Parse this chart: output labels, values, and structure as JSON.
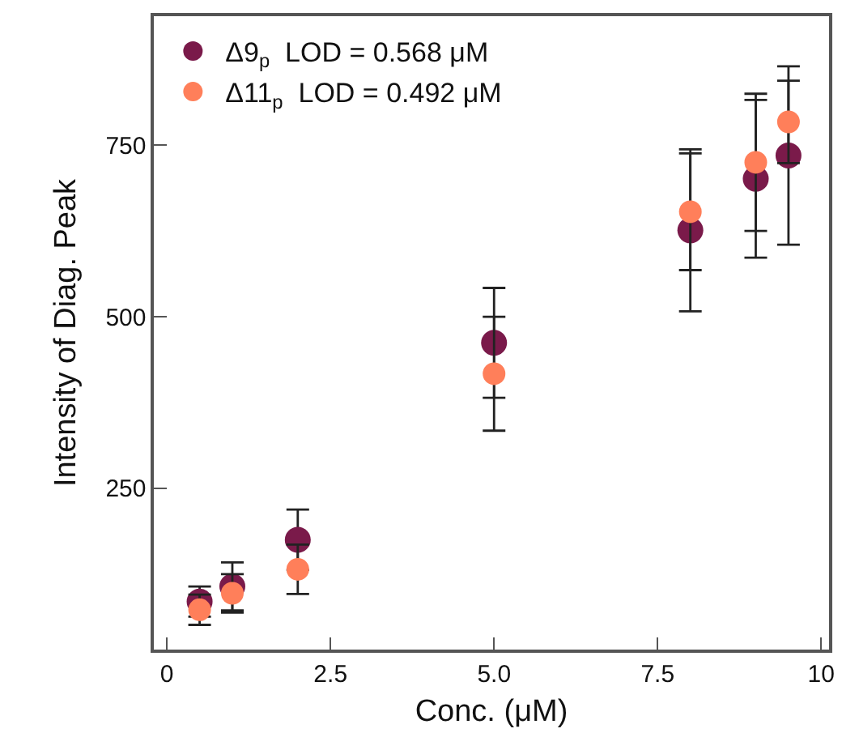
{
  "chart_data": {
    "type": "scatter",
    "xlabel": "Conc. (μM)",
    "ylabel": "Intensity of Diag. Peak",
    "x": [
      0.5,
      1,
      2,
      5,
      8,
      9,
      9.5
    ],
    "series": [
      {
        "name": "Δ9$_{p}$  LOD = 0.568 μM",
        "color": "#7a1a4a",
        "values": [
          85,
          107,
          175,
          462,
          626,
          701,
          735
        ],
        "errors": [
          22,
          35,
          44,
          80,
          118,
          115,
          130
        ]
      },
      {
        "name": "Δ11$_{p}$  LOD = 0.492 μM",
        "color": "#ff7f5a",
        "values": [
          73,
          97,
          132,
          417,
          653,
          725,
          784
        ],
        "errors": [
          22,
          28,
          36,
          83,
          85,
          100,
          60
        ]
      }
    ],
    "xlim": [
      -0.2,
      10.12
    ],
    "xticks": [
      0,
      {
        "value": 2.5,
        "label": "2.5"
      },
      {
        "value": 5,
        "label": "5.0"
      },
      {
        "value": 7.5,
        "label": "7.5"
      },
      10
    ],
    "ylim": [
      15,
      938
    ],
    "yticks": [
      250,
      500,
      750
    ],
    "grid": false,
    "legend": "top left",
    "marker": "circle"
  }
}
